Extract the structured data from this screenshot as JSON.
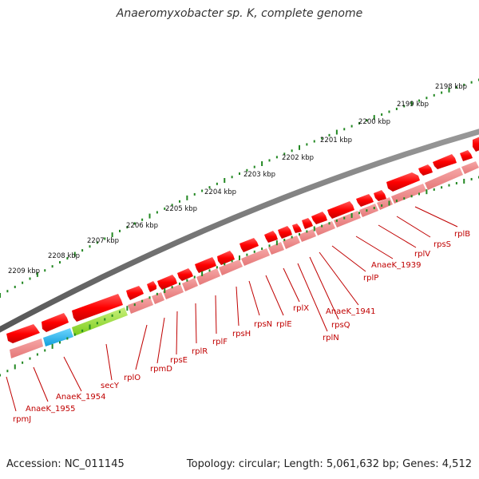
{
  "title": "Anaeromyxobacter sp. K, complete genome",
  "footer": {
    "accession": "Accession: NC_011145",
    "info": "Topology: circular; Length: 5,061,632 bp; Genes: 4,512"
  },
  "scale_labels": [
    "2198 kbp",
    "2199 kbp",
    "2200 kbp",
    "2201 kbp",
    "2202 kbp",
    "2203 kbp",
    "2204 kbp",
    "2205 kbp",
    "2206 kbp",
    "2207 kbp",
    "2208 kbp",
    "2209 kbp"
  ],
  "gene_labels": [
    "rplB",
    "rpsS",
    "rplV",
    "AnaeK_1939",
    "rplP",
    "AnaeK_1941",
    "rplX",
    "rpsQ",
    "rplN",
    "rplE",
    "rpsN",
    "rpsH",
    "rplF",
    "rplR",
    "rpsE",
    "rpmD",
    "rplO",
    "secY",
    "AnaeK_1954",
    "AnaeK_1955",
    "rpmJ"
  ],
  "colors": {
    "gene": "#ff0000",
    "gene_light": "#f08080",
    "secY": "#88dd22",
    "adenylate": "#1eaaee",
    "backbone": "#777777",
    "ticks": "#228822",
    "label": "#c00000"
  }
}
